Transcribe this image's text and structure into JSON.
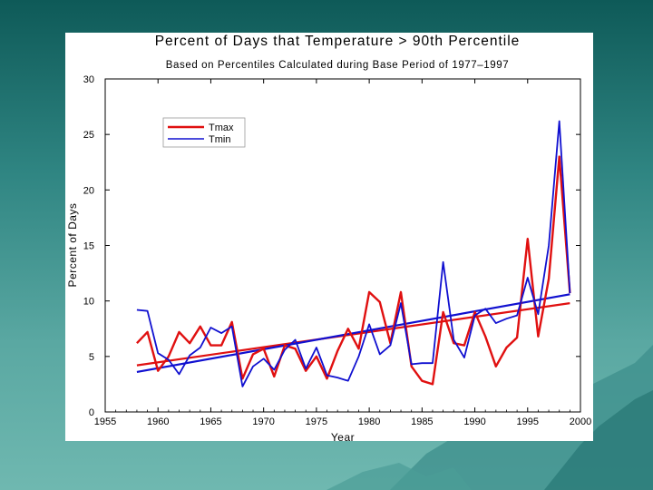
{
  "chart_data": {
    "type": "line",
    "title": "Percent of Days that Temperature > 90th Percentile",
    "subtitle": "Based on Percentiles Calculated during Base Period of 1977–1997",
    "xlabel": "Year",
    "ylabel": "Percent of Days",
    "xlim": [
      1955,
      2000
    ],
    "ylim": [
      0,
      30
    ],
    "xticks": [
      1955,
      1960,
      1965,
      1970,
      1975,
      1980,
      1985,
      1990,
      1995,
      2000
    ],
    "yticks": [
      0,
      5,
      10,
      15,
      20,
      25,
      30
    ],
    "legend_position": "top-left",
    "x": [
      1958,
      1959,
      1960,
      1961,
      1962,
      1963,
      1964,
      1965,
      1966,
      1967,
      1968,
      1969,
      1970,
      1971,
      1972,
      1973,
      1974,
      1975,
      1976,
      1977,
      1978,
      1979,
      1980,
      1981,
      1982,
      1983,
      1984,
      1985,
      1986,
      1987,
      1988,
      1989,
      1990,
      1991,
      1992,
      1993,
      1994,
      1995,
      1996,
      1997,
      1998,
      1999
    ],
    "series": [
      {
        "name": "Tmax",
        "color": "#e01010",
        "values": [
          6.2,
          7.2,
          3.7,
          5.0,
          7.2,
          6.2,
          7.7,
          6.0,
          6.0,
          8.1,
          3.0,
          5.2,
          5.7,
          3.2,
          6.0,
          5.7,
          3.7,
          5.0,
          3.0,
          5.5,
          7.5,
          5.7,
          10.8,
          9.9,
          6.2,
          10.8,
          4.1,
          2.8,
          2.5,
          9.0,
          6.2,
          6.0,
          9.0,
          6.8,
          4.1,
          5.8,
          6.7,
          15.6,
          6.8,
          12.0,
          23.0,
          10.7
        ],
        "trend": [
          4.2,
          9.8
        ]
      },
      {
        "name": "Tmin",
        "color": "#1010d0",
        "values": [
          9.2,
          9.1,
          5.3,
          4.7,
          3.4,
          5.1,
          5.8,
          7.6,
          7.1,
          7.7,
          2.3,
          4.1,
          4.8,
          3.8,
          5.6,
          6.5,
          3.9,
          5.8,
          3.3,
          3.1,
          2.8,
          5.0,
          7.9,
          5.2,
          6.0,
          9.8,
          4.3,
          4.4,
          4.4,
          13.5,
          6.5,
          4.9,
          8.7,
          9.3,
          8.0,
          8.4,
          8.7,
          12.1,
          8.8,
          15.0,
          26.2,
          10.7
        ],
        "trend": [
          3.6,
          10.6
        ]
      }
    ]
  }
}
